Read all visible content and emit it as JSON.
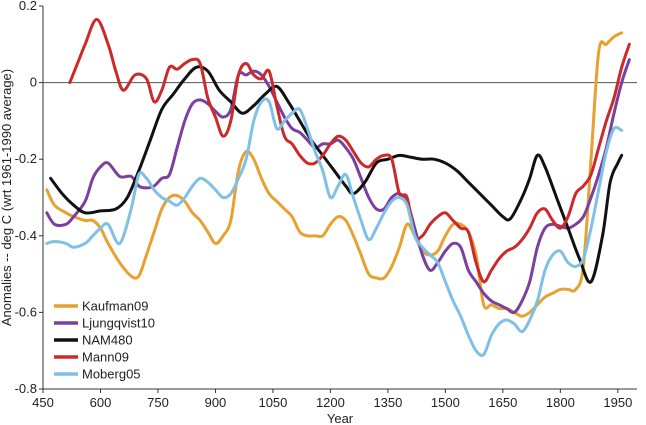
{
  "chart_data": {
    "type": "line",
    "title": "",
    "xlabel": "Year",
    "ylabel": "Anomalies -- deg C (wrt 1961-1990 average)",
    "xlim": [
      450,
      2000
    ],
    "ylim": [
      -0.8,
      0.2
    ],
    "xticks": [
      450,
      600,
      750,
      900,
      1050,
      1200,
      1350,
      1500,
      1650,
      1800,
      1950
    ],
    "yticks": [
      -0.8,
      -0.6,
      -0.4,
      -0.2,
      0,
      0.2
    ],
    "ytick_labels": [
      "-0.8",
      "-0.6",
      "-0.4",
      "-0.2",
      "0",
      "0.2"
    ],
    "legend_position": "bottom-left",
    "series": [
      {
        "name": "Kaufman09",
        "color": "#e8a030",
        "x": [
          460,
          480,
          510,
          530,
          560,
          580,
          600,
          620,
          650,
          680,
          700,
          720,
          740,
          760,
          780,
          800,
          820,
          840,
          860,
          880,
          900,
          920,
          940,
          960,
          980,
          1000,
          1020,
          1040,
          1060,
          1080,
          1100,
          1120,
          1140,
          1160,
          1180,
          1200,
          1220,
          1240,
          1260,
          1280,
          1300,
          1320,
          1340,
          1360,
          1380,
          1400,
          1420,
          1440,
          1460,
          1480,
          1500,
          1520,
          1540,
          1560,
          1580,
          1600,
          1620,
          1640,
          1660,
          1680,
          1700,
          1720,
          1740,
          1760,
          1780,
          1800,
          1820,
          1840,
          1860,
          1880,
          1900,
          1920,
          1940,
          1960
        ],
        "values": [
          -0.28,
          -0.32,
          -0.34,
          -0.35,
          -0.36,
          -0.36,
          -0.38,
          -0.42,
          -0.47,
          -0.505,
          -0.505,
          -0.45,
          -0.39,
          -0.33,
          -0.3,
          -0.295,
          -0.31,
          -0.34,
          -0.36,
          -0.39,
          -0.42,
          -0.4,
          -0.36,
          -0.23,
          -0.18,
          -0.2,
          -0.25,
          -0.29,
          -0.31,
          -0.33,
          -0.35,
          -0.39,
          -0.4,
          -0.4,
          -0.4,
          -0.37,
          -0.35,
          -0.36,
          -0.4,
          -0.45,
          -0.5,
          -0.51,
          -0.51,
          -0.48,
          -0.43,
          -0.37,
          -0.4,
          -0.44,
          -0.45,
          -0.44,
          -0.4,
          -0.37,
          -0.37,
          -0.39,
          -0.45,
          -0.58,
          -0.58,
          -0.59,
          -0.59,
          -0.6,
          -0.61,
          -0.6,
          -0.58,
          -0.56,
          -0.55,
          -0.54,
          -0.54,
          -0.54,
          -0.48,
          -0.2,
          0.08,
          0.1,
          0.12,
          0.13
        ]
      },
      {
        "name": "Ljungqvist10",
        "color": "#7b3fa0",
        "x": [
          460,
          480,
          510,
          530,
          560,
          580,
          600,
          620,
          650,
          680,
          700,
          720,
          740,
          760,
          780,
          800,
          820,
          840,
          860,
          880,
          900,
          920,
          940,
          960,
          980,
          1000,
          1020,
          1040,
          1060,
          1080,
          1100,
          1120,
          1140,
          1160,
          1180,
          1200,
          1220,
          1240,
          1260,
          1280,
          1300,
          1320,
          1340,
          1360,
          1380,
          1400,
          1420,
          1440,
          1460,
          1480,
          1500,
          1520,
          1540,
          1560,
          1580,
          1600,
          1620,
          1640,
          1660,
          1680,
          1700,
          1720,
          1740,
          1760,
          1780,
          1800,
          1820,
          1840,
          1860,
          1880,
          1900,
          1920,
          1940,
          1960,
          1980
        ],
        "values": [
          -0.34,
          -0.37,
          -0.37,
          -0.35,
          -0.31,
          -0.25,
          -0.22,
          -0.21,
          -0.245,
          -0.245,
          -0.27,
          -0.275,
          -0.27,
          -0.25,
          -0.24,
          -0.17,
          -0.1,
          -0.055,
          -0.045,
          -0.055,
          -0.075,
          -0.09,
          -0.07,
          0.02,
          0.02,
          0.03,
          0.02,
          -0.01,
          -0.05,
          -0.09,
          -0.12,
          -0.13,
          -0.15,
          -0.17,
          -0.16,
          -0.16,
          -0.15,
          -0.17,
          -0.2,
          -0.25,
          -0.3,
          -0.33,
          -0.33,
          -0.3,
          -0.29,
          -0.31,
          -0.38,
          -0.45,
          -0.49,
          -0.47,
          -0.44,
          -0.42,
          -0.43,
          -0.49,
          -0.52,
          -0.55,
          -0.57,
          -0.58,
          -0.59,
          -0.6,
          -0.57,
          -0.52,
          -0.43,
          -0.38,
          -0.37,
          -0.375,
          -0.38,
          -0.37,
          -0.35,
          -0.3,
          -0.24,
          -0.17,
          -0.08,
          0.0,
          0.06
        ]
      },
      {
        "name": "NAM480",
        "color": "#111111",
        "x": [
          470,
          500,
          530,
          560,
          600,
          640,
          670,
          700,
          730,
          760,
          790,
          820,
          850,
          880,
          910,
          940,
          970,
          1000,
          1030,
          1060,
          1090,
          1120,
          1150,
          1180,
          1210,
          1240,
          1260,
          1290,
          1320,
          1350,
          1380,
          1410,
          1440,
          1470,
          1500,
          1530,
          1560,
          1590,
          1620,
          1650,
          1670,
          1700,
          1720,
          1740,
          1760,
          1790,
          1820,
          1850,
          1880,
          1910,
          1930,
          1950,
          1960
        ],
        "values": [
          -0.25,
          -0.29,
          -0.32,
          -0.34,
          -0.335,
          -0.33,
          -0.3,
          -0.23,
          -0.15,
          -0.07,
          -0.03,
          0.01,
          0.04,
          0.03,
          -0.02,
          -0.05,
          -0.08,
          -0.06,
          -0.03,
          -0.01,
          -0.05,
          -0.1,
          -0.15,
          -0.19,
          -0.23,
          -0.27,
          -0.29,
          -0.26,
          -0.21,
          -0.2,
          -0.19,
          -0.195,
          -0.2,
          -0.2,
          -0.21,
          -0.23,
          -0.26,
          -0.29,
          -0.32,
          -0.35,
          -0.355,
          -0.3,
          -0.25,
          -0.19,
          -0.22,
          -0.3,
          -0.38,
          -0.46,
          -0.52,
          -0.4,
          -0.26,
          -0.21,
          -0.19
        ]
      },
      {
        "name": "Mann09",
        "color": "#cc2a2a",
        "x": [
          520,
          540,
          560,
          590,
          620,
          640,
          660,
          690,
          720,
          740,
          760,
          780,
          800,
          820,
          840,
          860,
          880,
          900,
          920,
          940,
          960,
          980,
          1000,
          1020,
          1040,
          1060,
          1080,
          1100,
          1120,
          1140,
          1160,
          1180,
          1200,
          1220,
          1240,
          1260,
          1280,
          1300,
          1320,
          1340,
          1360,
          1380,
          1400,
          1420,
          1440,
          1460,
          1480,
          1500,
          1520,
          1540,
          1560,
          1580,
          1600,
          1620,
          1640,
          1660,
          1680,
          1700,
          1720,
          1740,
          1760,
          1780,
          1800,
          1820,
          1840,
          1860,
          1880,
          1900,
          1920,
          1940,
          1960,
          1980
        ],
        "values": [
          0.0,
          0.05,
          0.1,
          0.165,
          0.1,
          0.03,
          -0.02,
          0.02,
          0.01,
          -0.05,
          -0.02,
          0.04,
          0.035,
          0.05,
          0.06,
          0.05,
          -0.04,
          -0.09,
          -0.14,
          -0.1,
          0.02,
          0.05,
          0.02,
          0.01,
          0.03,
          -0.06,
          -0.14,
          -0.16,
          -0.19,
          -0.21,
          -0.21,
          -0.19,
          -0.16,
          -0.14,
          -0.15,
          -0.18,
          -0.21,
          -0.22,
          -0.2,
          -0.19,
          -0.2,
          -0.29,
          -0.3,
          -0.4,
          -0.4,
          -0.37,
          -0.35,
          -0.34,
          -0.36,
          -0.38,
          -0.39,
          -0.47,
          -0.52,
          -0.49,
          -0.46,
          -0.44,
          -0.43,
          -0.41,
          -0.38,
          -0.34,
          -0.33,
          -0.36,
          -0.38,
          -0.35,
          -0.29,
          -0.27,
          -0.24,
          -0.17,
          -0.1,
          -0.04,
          0.04,
          0.1
        ]
      },
      {
        "name": "Moberg05",
        "color": "#7ec0e6",
        "x": [
          460,
          480,
          510,
          530,
          560,
          580,
          600,
          620,
          650,
          680,
          700,
          720,
          740,
          760,
          780,
          800,
          820,
          840,
          860,
          880,
          900,
          920,
          940,
          960,
          980,
          1000,
          1020,
          1040,
          1060,
          1080,
          1100,
          1120,
          1140,
          1160,
          1180,
          1200,
          1220,
          1240,
          1260,
          1280,
          1300,
          1320,
          1340,
          1360,
          1380,
          1400,
          1420,
          1440,
          1460,
          1480,
          1500,
          1520,
          1540,
          1560,
          1580,
          1600,
          1620,
          1640,
          1660,
          1680,
          1700,
          1720,
          1740,
          1760,
          1780,
          1800,
          1820,
          1840,
          1860,
          1880,
          1900,
          1920,
          1940,
          1960
        ],
        "values": [
          -0.42,
          -0.415,
          -0.42,
          -0.43,
          -0.42,
          -0.4,
          -0.38,
          -0.37,
          -0.42,
          -0.33,
          -0.24,
          -0.25,
          -0.28,
          -0.3,
          -0.31,
          -0.32,
          -0.3,
          -0.27,
          -0.25,
          -0.26,
          -0.28,
          -0.3,
          -0.29,
          -0.25,
          -0.2,
          -0.1,
          -0.05,
          -0.05,
          -0.12,
          -0.1,
          -0.08,
          -0.07,
          -0.12,
          -0.18,
          -0.23,
          -0.3,
          -0.27,
          -0.24,
          -0.3,
          -0.36,
          -0.41,
          -0.38,
          -0.34,
          -0.31,
          -0.3,
          -0.32,
          -0.4,
          -0.43,
          -0.45,
          -0.47,
          -0.52,
          -0.57,
          -0.61,
          -0.66,
          -0.7,
          -0.71,
          -0.66,
          -0.63,
          -0.62,
          -0.63,
          -0.65,
          -0.62,
          -0.57,
          -0.49,
          -0.45,
          -0.44,
          -0.47,
          -0.48,
          -0.46,
          -0.38,
          -0.28,
          -0.18,
          -0.12,
          -0.125
        ]
      }
    ]
  }
}
